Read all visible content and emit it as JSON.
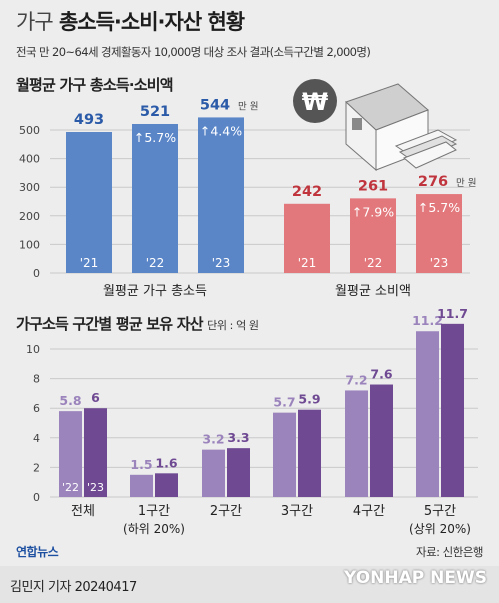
{
  "header": {
    "title_light": "가구",
    "title_bold": "총소득·소비·자산 현황",
    "subtitle": "전국 만 20~64세 경제활동자 10,000명 대상 조사 결과(소득구간별 2,000명)"
  },
  "section1": {
    "title": "월평균 가구 총소득·소비액"
  },
  "section2": {
    "title": "가구소득 구간별 평균 보유 자산",
    "unit": "단위 : 억 원"
  },
  "source": "자료: 신한은행",
  "logo": "연합뉴스",
  "author": "김민지 기자  20240417",
  "watermark": "YONHAP NEWS",
  "icon_won_symbol": "₩",
  "colors": {
    "income": "#5a86c8",
    "income_label": "#2a5aa8",
    "spending": "#e3787c",
    "spending_label": "#c0353d",
    "asset_light": "#9b84bc",
    "asset_dark": "#6f4a93"
  },
  "chart_data": [
    {
      "type": "bar",
      "groups": [
        {
          "name": "월평균 가구 총소득",
          "categories": [
            "'21",
            "'22",
            "'23"
          ],
          "values": [
            493,
            521,
            544
          ],
          "value_labels": [
            "493",
            "521",
            "544"
          ],
          "unit_suffix": "만 원",
          "changes": [
            "",
            "↑5.7%",
            "↑4.4%"
          ]
        },
        {
          "name": "월평균 소비액",
          "categories": [
            "'21",
            "'22",
            "'23"
          ],
          "values": [
            242,
            261,
            276
          ],
          "value_labels": [
            "242",
            "261",
            "276"
          ],
          "unit_suffix": "만 원",
          "changes": [
            "",
            "↑7.9%",
            "↑5.7%"
          ]
        }
      ],
      "ylim": [
        0,
        550
      ],
      "yticks": [
        0,
        100,
        200,
        300,
        400,
        500
      ],
      "grid": true
    },
    {
      "type": "bar",
      "categories": [
        "전체",
        "1구간",
        "2구간",
        "3구간",
        "4구간",
        "5구간"
      ],
      "category_sublabels": [
        "",
        "(하위 20%)",
        "",
        "",
        "",
        "(상위 20%)"
      ],
      "series": [
        {
          "name": "'22",
          "values": [
            5.8,
            1.5,
            3.2,
            5.7,
            7.2,
            11.2
          ]
        },
        {
          "name": "'23",
          "values": [
            6.0,
            1.6,
            3.3,
            5.9,
            7.6,
            11.7
          ]
        }
      ],
      "ylim": [
        0,
        11
      ],
      "yticks": [
        0,
        2,
        4,
        6,
        8,
        10
      ],
      "grid": true
    }
  ]
}
